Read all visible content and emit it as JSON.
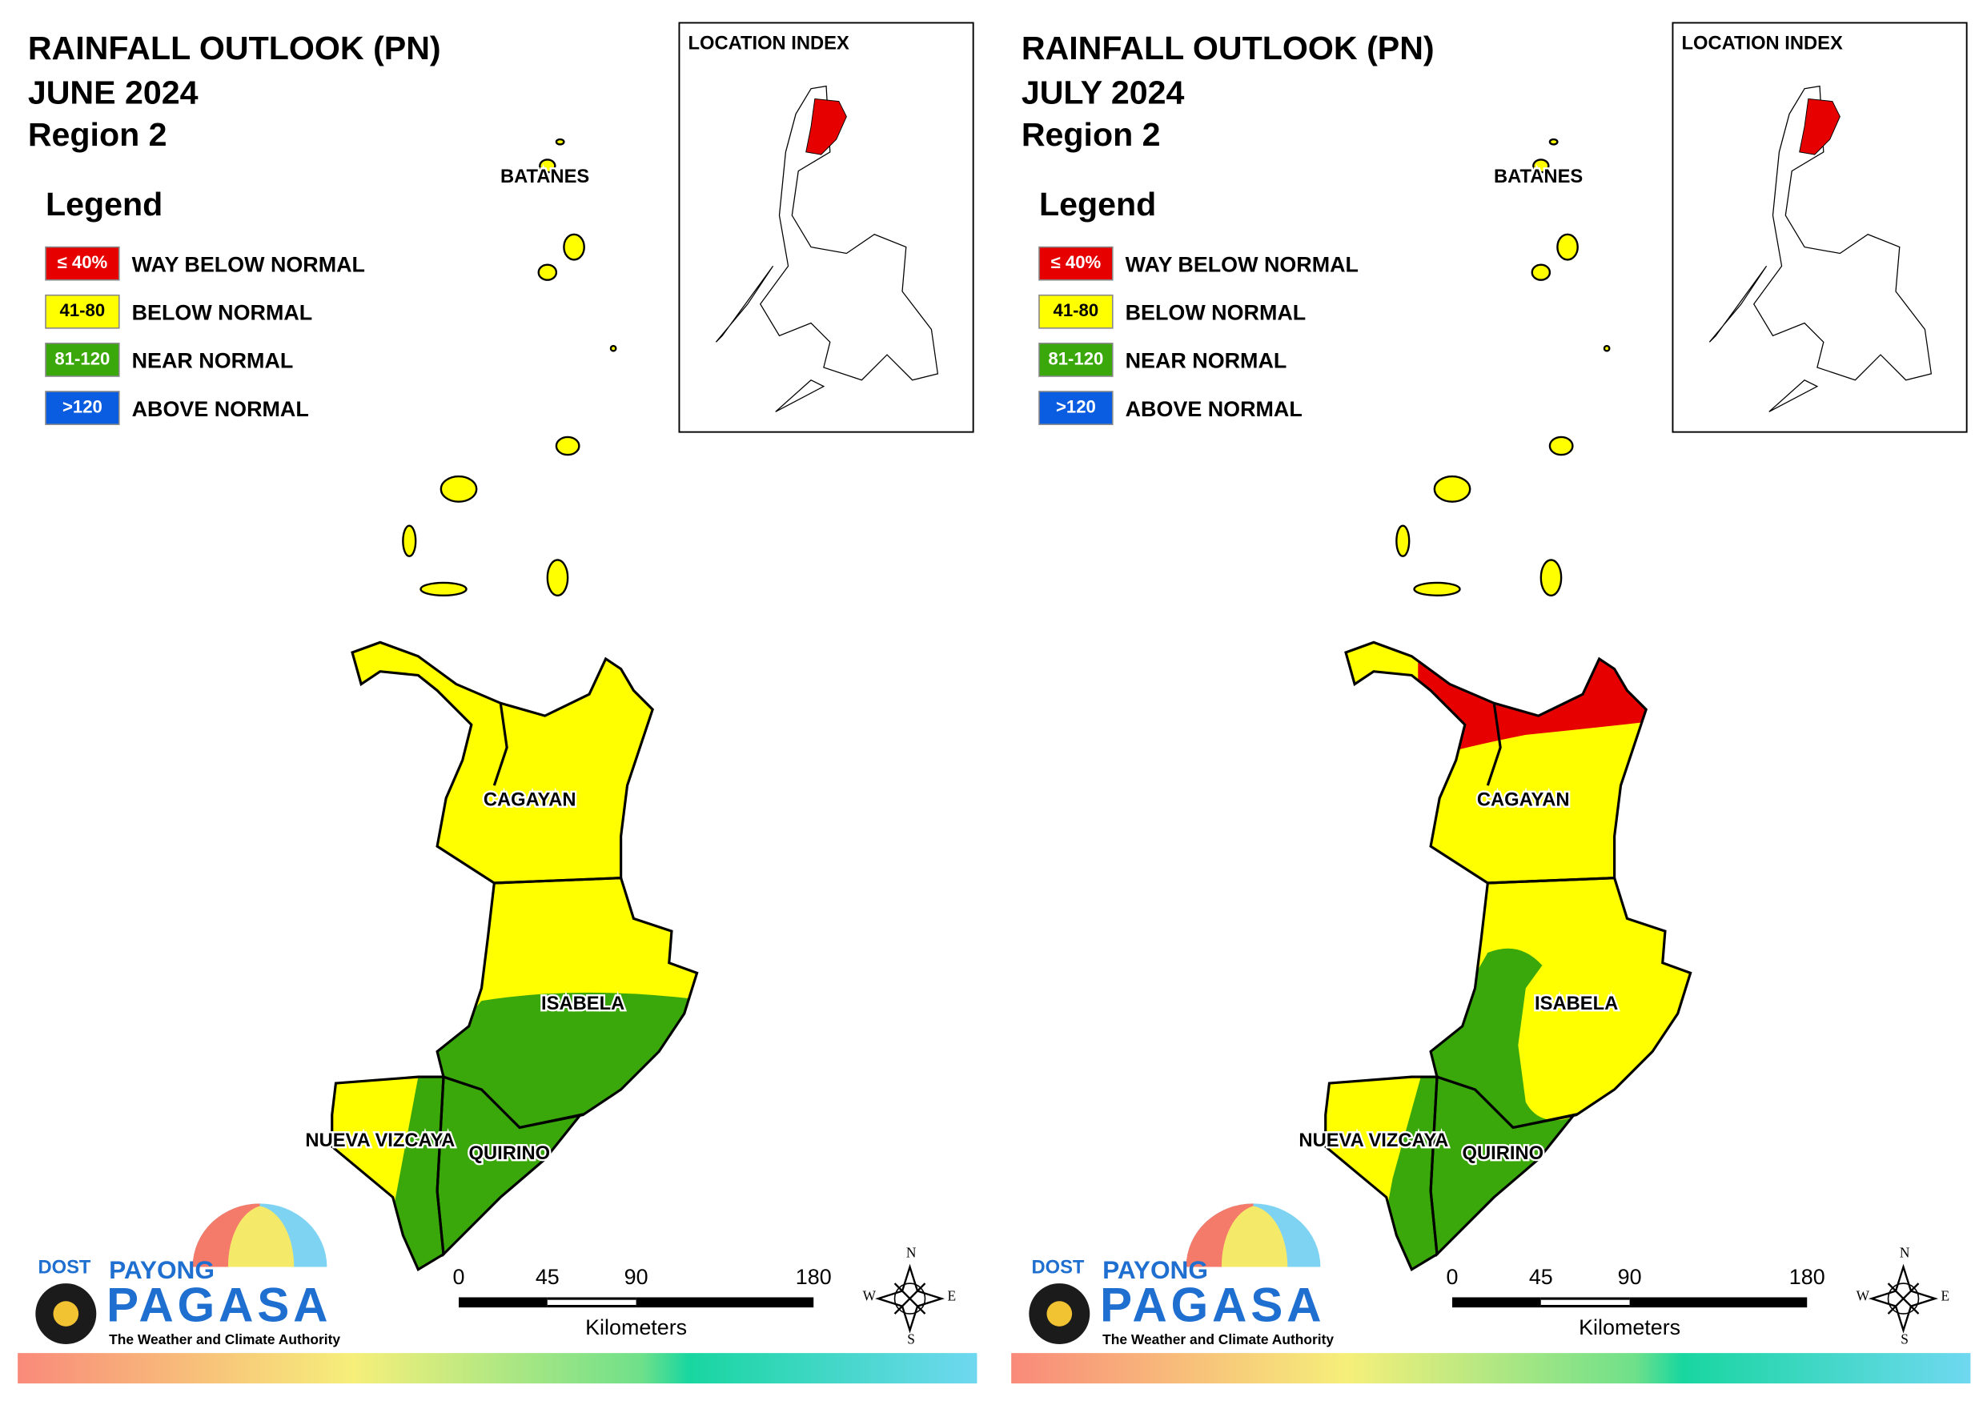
{
  "panels": [
    {
      "title": "RAINFALL OUTLOOK (PN)",
      "period": "JUNE 2024",
      "region": "Region 2",
      "legend": {
        "title": "Legend",
        "items": [
          {
            "key": "≤ 40%",
            "label": "WAY BELOW NORMAL",
            "color": "#e60000"
          },
          {
            "key": "41-80",
            "label": "BELOW NORMAL",
            "color": "#ffff00"
          },
          {
            "key": "81-120",
            "label": "NEAR NORMAL",
            "color": "#3aa80a"
          },
          {
            "key": ">120",
            "label": "ABOVE NORMAL",
            "color": "#0a5ce0"
          }
        ]
      },
      "inset_title": "LOCATION INDEX",
      "provinces": [
        "BATANES",
        "CAGAYAN",
        "ISABELA",
        "NUEVA VIZCAYA",
        "QUIRINO"
      ],
      "scale_bar": {
        "ticks": [
          0,
          45,
          90,
          180
        ],
        "unit": "Kilometers"
      },
      "compass": [
        "N",
        "E",
        "S",
        "W"
      ],
      "logo": {
        "agency": "DOST",
        "brand": "PAYONG",
        "name": "PAGASA",
        "tagline": "The Weather and Climate Authority"
      }
    },
    {
      "title": "RAINFALL OUTLOOK (PN)",
      "period": "JULY 2024",
      "region": "Region 2",
      "legend": {
        "title": "Legend",
        "items": [
          {
            "key": "≤ 40%",
            "label": "WAY BELOW NORMAL",
            "color": "#e60000"
          },
          {
            "key": "41-80",
            "label": "BELOW NORMAL",
            "color": "#ffff00"
          },
          {
            "key": "81-120",
            "label": "NEAR NORMAL",
            "color": "#3aa80a"
          },
          {
            "key": ">120",
            "label": "ABOVE NORMAL",
            "color": "#0a5ce0"
          }
        ]
      },
      "inset_title": "LOCATION INDEX",
      "provinces": [
        "BATANES",
        "CAGAYAN",
        "ISABELA",
        "NUEVA VIZCAYA",
        "QUIRINO"
      ],
      "scale_bar": {
        "ticks": [
          0,
          45,
          90,
          180
        ],
        "unit": "Kilometers"
      },
      "compass": [
        "N",
        "E",
        "S",
        "W"
      ],
      "logo": {
        "agency": "DOST",
        "brand": "PAYONG",
        "name": "PAGASA",
        "tagline": "The Weather and Climate Authority"
      }
    }
  ]
}
